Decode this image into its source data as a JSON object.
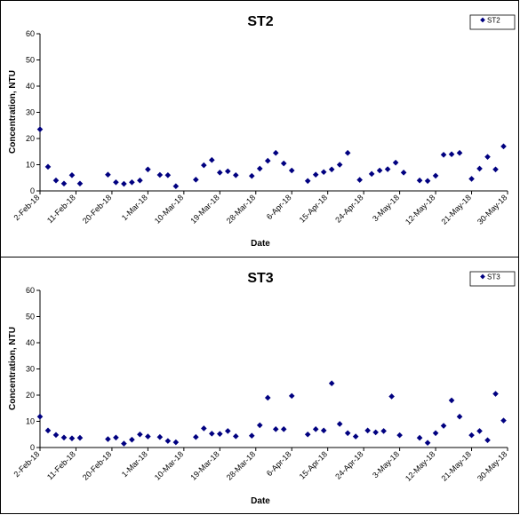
{
  "chart_data": [
    {
      "type": "scatter",
      "title": "ST2",
      "xlabel": "Date",
      "ylabel": "Concentration, NTU",
      "ylim": [
        0,
        60
      ],
      "yticks": [
        0,
        10,
        20,
        30,
        40,
        50,
        60
      ],
      "x_tick_labels": [
        "2-Feb-18",
        "11-Feb-18",
        "20-Feb-18",
        "1-Mar-18",
        "10-Mar-18",
        "19-Mar-18",
        "28-Mar-18",
        "6-Apr-18",
        "15-Apr-18",
        "24-Apr-18",
        "3-May-18",
        "12-May-18",
        "21-May-18",
        "30-May-18"
      ],
      "xlim": [
        "2018-02-02",
        "2018-05-30"
      ],
      "legend_position": "top-right",
      "grid": false,
      "marker": "diamond",
      "marker_color": "#000080",
      "series": [
        {
          "name": "ST2",
          "points": [
            {
              "x": "2018-02-02",
              "y": 23.5
            },
            {
              "x": "2018-02-04",
              "y": 9.2
            },
            {
              "x": "2018-02-06",
              "y": 4.0
            },
            {
              "x": "2018-02-08",
              "y": 2.8
            },
            {
              "x": "2018-02-10",
              "y": 6.0
            },
            {
              "x": "2018-02-12",
              "y": 2.8
            },
            {
              "x": "2018-02-19",
              "y": 6.2
            },
            {
              "x": "2018-02-21",
              "y": 3.3
            },
            {
              "x": "2018-02-23",
              "y": 2.7
            },
            {
              "x": "2018-02-25",
              "y": 3.3
            },
            {
              "x": "2018-02-27",
              "y": 4.0
            },
            {
              "x": "2018-03-01",
              "y": 8.2
            },
            {
              "x": "2018-03-04",
              "y": 6.1
            },
            {
              "x": "2018-03-06",
              "y": 6.0
            },
            {
              "x": "2018-03-08",
              "y": 1.8
            },
            {
              "x": "2018-03-13",
              "y": 4.3
            },
            {
              "x": "2018-03-15",
              "y": 9.8
            },
            {
              "x": "2018-03-17",
              "y": 11.8
            },
            {
              "x": "2018-03-19",
              "y": 7.0
            },
            {
              "x": "2018-03-21",
              "y": 7.5
            },
            {
              "x": "2018-03-23",
              "y": 6.0
            },
            {
              "x": "2018-03-27",
              "y": 5.7
            },
            {
              "x": "2018-03-29",
              "y": 8.5
            },
            {
              "x": "2018-03-31",
              "y": 11.5
            },
            {
              "x": "2018-04-02",
              "y": 14.5
            },
            {
              "x": "2018-04-04",
              "y": 10.5
            },
            {
              "x": "2018-04-06",
              "y": 7.8
            },
            {
              "x": "2018-04-10",
              "y": 3.8
            },
            {
              "x": "2018-04-12",
              "y": 6.2
            },
            {
              "x": "2018-04-14",
              "y": 7.2
            },
            {
              "x": "2018-04-16",
              "y": 8.2
            },
            {
              "x": "2018-04-18",
              "y": 10.0
            },
            {
              "x": "2018-04-20",
              "y": 14.5
            },
            {
              "x": "2018-04-23",
              "y": 4.2
            },
            {
              "x": "2018-04-26",
              "y": 6.5
            },
            {
              "x": "2018-04-28",
              "y": 7.8
            },
            {
              "x": "2018-04-30",
              "y": 8.3
            },
            {
              "x": "2018-05-02",
              "y": 10.8
            },
            {
              "x": "2018-05-04",
              "y": 7.0
            },
            {
              "x": "2018-05-08",
              "y": 4.0
            },
            {
              "x": "2018-05-10",
              "y": 3.8
            },
            {
              "x": "2018-05-12",
              "y": 5.8
            },
            {
              "x": "2018-05-14",
              "y": 13.8
            },
            {
              "x": "2018-05-16",
              "y": 14.0
            },
            {
              "x": "2018-05-18",
              "y": 14.5
            },
            {
              "x": "2018-05-21",
              "y": 4.6
            },
            {
              "x": "2018-05-23",
              "y": 8.5
            },
            {
              "x": "2018-05-25",
              "y": 13.0
            },
            {
              "x": "2018-05-27",
              "y": 8.2
            },
            {
              "x": "2018-05-29",
              "y": 17.0
            }
          ]
        }
      ]
    },
    {
      "type": "scatter",
      "title": "ST3",
      "xlabel": "Date",
      "ylabel": "Concentration, NTU",
      "ylim": [
        0,
        60
      ],
      "yticks": [
        0,
        10,
        20,
        30,
        40,
        50,
        60
      ],
      "x_tick_labels": [
        "2-Feb-18",
        "11-Feb-18",
        "20-Feb-18",
        "1-Mar-18",
        "10-Mar-18",
        "19-Mar-18",
        "28-Mar-18",
        "6-Apr-18",
        "15-Apr-18",
        "24-Apr-18",
        "3-May-18",
        "12-May-18",
        "21-May-18",
        "30-May-18"
      ],
      "xlim": [
        "2018-02-02",
        "2018-05-30"
      ],
      "legend_position": "top-right",
      "grid": false,
      "marker": "diamond",
      "marker_color": "#000080",
      "series": [
        {
          "name": "ST3",
          "points": [
            {
              "x": "2018-02-02",
              "y": 11.8
            },
            {
              "x": "2018-02-04",
              "y": 6.5
            },
            {
              "x": "2018-02-06",
              "y": 4.8
            },
            {
              "x": "2018-02-08",
              "y": 3.8
            },
            {
              "x": "2018-02-10",
              "y": 3.5
            },
            {
              "x": "2018-02-12",
              "y": 3.7
            },
            {
              "x": "2018-02-19",
              "y": 3.2
            },
            {
              "x": "2018-02-21",
              "y": 3.8
            },
            {
              "x": "2018-02-23",
              "y": 1.5
            },
            {
              "x": "2018-02-25",
              "y": 3.0
            },
            {
              "x": "2018-02-27",
              "y": 5.0
            },
            {
              "x": "2018-03-01",
              "y": 4.2
            },
            {
              "x": "2018-03-04",
              "y": 4.0
            },
            {
              "x": "2018-03-06",
              "y": 2.5
            },
            {
              "x": "2018-03-08",
              "y": 2.0
            },
            {
              "x": "2018-03-13",
              "y": 4.0
            },
            {
              "x": "2018-03-15",
              "y": 7.3
            },
            {
              "x": "2018-03-17",
              "y": 5.3
            },
            {
              "x": "2018-03-19",
              "y": 5.2
            },
            {
              "x": "2018-03-21",
              "y": 6.3
            },
            {
              "x": "2018-03-23",
              "y": 4.3
            },
            {
              "x": "2018-03-27",
              "y": 4.5
            },
            {
              "x": "2018-03-29",
              "y": 8.5
            },
            {
              "x": "2018-03-31",
              "y": 19.0
            },
            {
              "x": "2018-04-02",
              "y": 7.0
            },
            {
              "x": "2018-04-04",
              "y": 7.0
            },
            {
              "x": "2018-04-06",
              "y": 19.7
            },
            {
              "x": "2018-04-10",
              "y": 5.0
            },
            {
              "x": "2018-04-12",
              "y": 7.0
            },
            {
              "x": "2018-04-14",
              "y": 6.5
            },
            {
              "x": "2018-04-16",
              "y": 24.5
            },
            {
              "x": "2018-04-18",
              "y": 9.0
            },
            {
              "x": "2018-04-20",
              "y": 5.5
            },
            {
              "x": "2018-04-22",
              "y": 4.2
            },
            {
              "x": "2018-04-25",
              "y": 6.5
            },
            {
              "x": "2018-04-27",
              "y": 5.8
            },
            {
              "x": "2018-04-29",
              "y": 6.3
            },
            {
              "x": "2018-05-01",
              "y": 19.5
            },
            {
              "x": "2018-05-03",
              "y": 4.7
            },
            {
              "x": "2018-05-08",
              "y": 3.7
            },
            {
              "x": "2018-05-10",
              "y": 1.8
            },
            {
              "x": "2018-05-12",
              "y": 5.5
            },
            {
              "x": "2018-05-14",
              "y": 8.3
            },
            {
              "x": "2018-05-16",
              "y": 18.0
            },
            {
              "x": "2018-05-18",
              "y": 11.8
            },
            {
              "x": "2018-05-21",
              "y": 4.7
            },
            {
              "x": "2018-05-23",
              "y": 6.3
            },
            {
              "x": "2018-05-25",
              "y": 2.8
            },
            {
              "x": "2018-05-27",
              "y": 20.5
            },
            {
              "x": "2018-05-29",
              "y": 10.3
            }
          ]
        }
      ]
    }
  ]
}
